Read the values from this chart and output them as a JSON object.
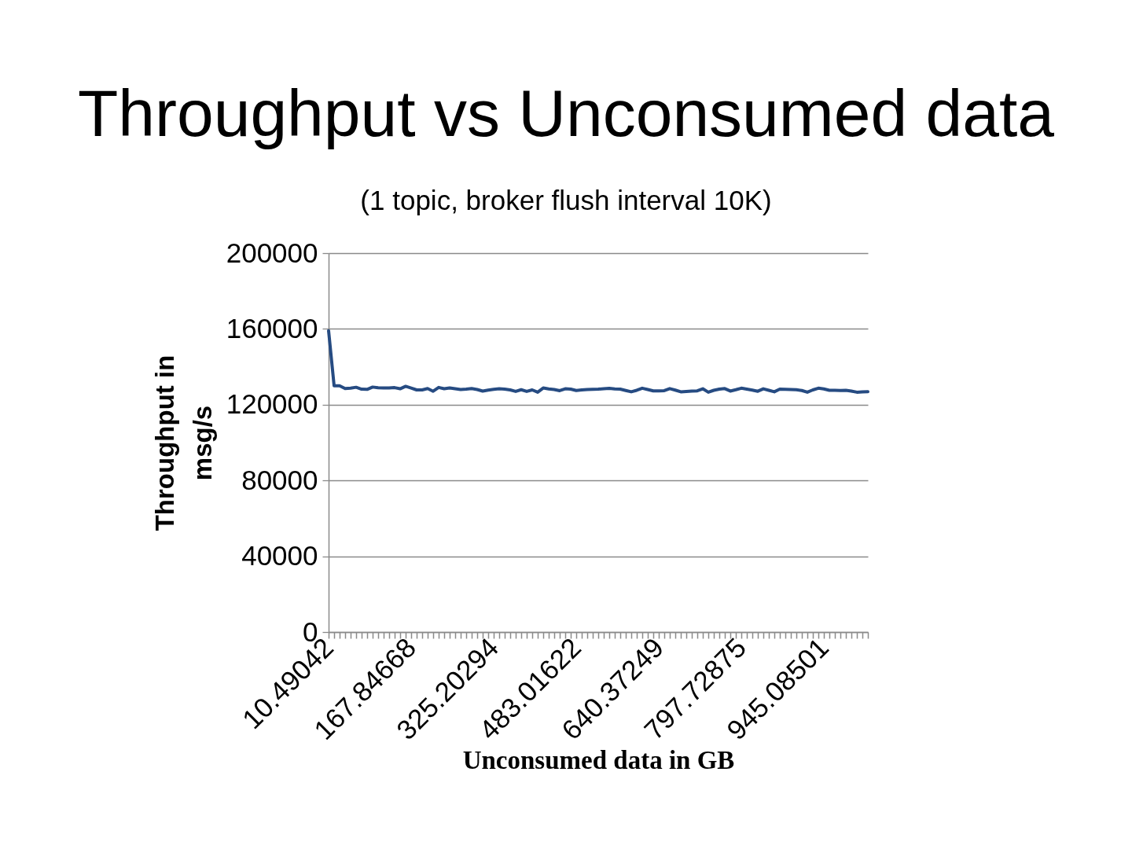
{
  "chart_data": {
    "type": "line",
    "title": "Throughput vs Unconsumed data",
    "subtitle": "(1 topic, broker flush interval 10K)",
    "xlabel": "Unconsumed data in GB",
    "ylabel": "Throughput in msg/s",
    "categories": [
      "10.49042",
      null,
      null,
      null,
      null,
      null,
      null,
      null,
      null,
      null,
      null,
      null,
      null,
      null,
      null,
      "167.84668",
      null,
      null,
      null,
      null,
      null,
      null,
      null,
      null,
      null,
      null,
      null,
      null,
      null,
      null,
      "325.20294",
      null,
      null,
      null,
      null,
      null,
      null,
      null,
      null,
      null,
      null,
      null,
      null,
      null,
      null,
      "483.01622",
      null,
      null,
      null,
      null,
      null,
      null,
      null,
      null,
      null,
      null,
      null,
      null,
      null,
      null,
      "640.37249",
      null,
      null,
      null,
      null,
      null,
      null,
      null,
      null,
      null,
      null,
      null,
      null,
      null,
      null,
      "797.72875",
      null,
      null,
      null,
      null,
      null,
      null,
      null,
      null,
      null,
      null,
      null,
      null,
      null,
      null,
      "945.08501",
      null,
      null,
      null,
      null,
      null,
      null,
      null,
      null
    ],
    "series": [
      {
        "color": "#264b82",
        "values": [
          159000,
          130000,
          130000,
          128500,
          128700,
          129200,
          128200,
          128100,
          129300,
          128900,
          128800,
          128800,
          129000,
          128400,
          129700,
          128800,
          127800,
          127800,
          128500,
          127100,
          129100,
          128400,
          128800,
          128400,
          128000,
          128200,
          128500,
          128000,
          127200,
          127700,
          128100,
          128400,
          128200,
          127800,
          127000,
          127900,
          127000,
          127800,
          126600,
          128800,
          128300,
          128000,
          127400,
          128400,
          128200,
          127500,
          127800,
          128000,
          128100,
          128200,
          128400,
          128600,
          128300,
          128200,
          127500,
          126800,
          127600,
          128700,
          128000,
          127300,
          127300,
          127400,
          128500,
          127700,
          126800,
          127000,
          127200,
          127300,
          128400,
          126600,
          127600,
          128200,
          128500,
          127200,
          127900,
          128700,
          128200,
          127700,
          127100,
          128400,
          127600,
          126800,
          128200,
          128100,
          128000,
          127900,
          127500,
          126600,
          127800,
          128700,
          128300,
          127600,
          127600,
          127500,
          127600,
          127200,
          126600,
          126800,
          126900
        ]
      }
    ],
    "ylim": [
      0,
      200000
    ],
    "yticks": [
      0,
      40000,
      80000,
      120000,
      160000,
      200000
    ],
    "grid": "y",
    "line_style": "solid"
  }
}
